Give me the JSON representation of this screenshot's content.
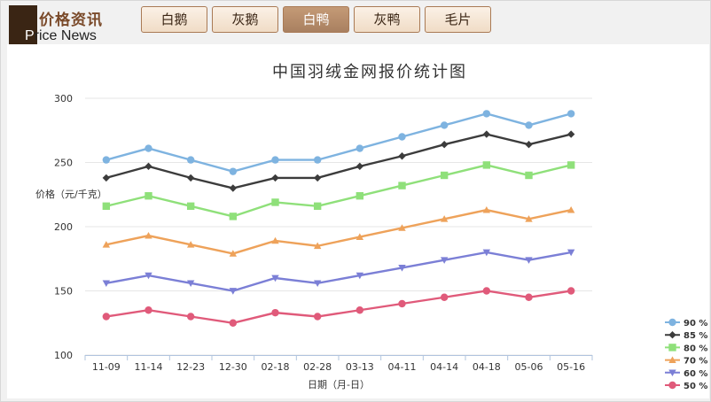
{
  "logo": {
    "cn": "价格资讯",
    "en_first": "P",
    "en_rest": "rice News"
  },
  "tabs": [
    {
      "label": "白鹅",
      "active": false
    },
    {
      "label": "灰鹅",
      "active": false
    },
    {
      "label": "白鸭",
      "active": true
    },
    {
      "label": "灰鸭",
      "active": false
    },
    {
      "label": "毛片",
      "active": false
    }
  ],
  "chart_data": {
    "type": "line",
    "title": "中国羽绒金网报价统计图",
    "xlabel": "日期（月-日）",
    "ylabel": "价格（元/千克）",
    "ylim": [
      100,
      300
    ],
    "yticks": [
      100,
      150,
      200,
      250,
      300
    ],
    "grid": true,
    "legend_position": "bottom-right",
    "categories": [
      "11-09",
      "11-14",
      "12-23",
      "12-30",
      "02-18",
      "02-28",
      "03-13",
      "04-11",
      "04-14",
      "04-18",
      "05-06",
      "05-16"
    ],
    "series": [
      {
        "name": "90 %",
        "color": "#7eb3e0",
        "marker": "circle",
        "values": [
          252,
          261,
          252,
          243,
          252,
          252,
          261,
          270,
          279,
          288,
          279,
          288
        ]
      },
      {
        "name": "85 %",
        "color": "#3c3c3c",
        "marker": "diamond",
        "values": [
          238,
          247,
          238,
          230,
          238,
          238,
          247,
          255,
          264,
          272,
          264,
          272
        ]
      },
      {
        "name": "80 %",
        "color": "#8fe07a",
        "marker": "square",
        "values": [
          216,
          224,
          216,
          208,
          219,
          216,
          224,
          232,
          240,
          248,
          240,
          248
        ]
      },
      {
        "name": "70 %",
        "color": "#eea25a",
        "marker": "triangle",
        "values": [
          186,
          193,
          186,
          179,
          189,
          185,
          192,
          199,
          206,
          213,
          206,
          213
        ]
      },
      {
        "name": "60 %",
        "color": "#7b7fd6",
        "marker": "triangle-down",
        "values": [
          156,
          162,
          156,
          150,
          160,
          156,
          162,
          168,
          174,
          180,
          174,
          180
        ]
      },
      {
        "name": "50 %",
        "color": "#e05a7a",
        "marker": "circle",
        "values": [
          130,
          135,
          130,
          125,
          133,
          130,
          135,
          140,
          145,
          150,
          145,
          150
        ]
      }
    ]
  }
}
